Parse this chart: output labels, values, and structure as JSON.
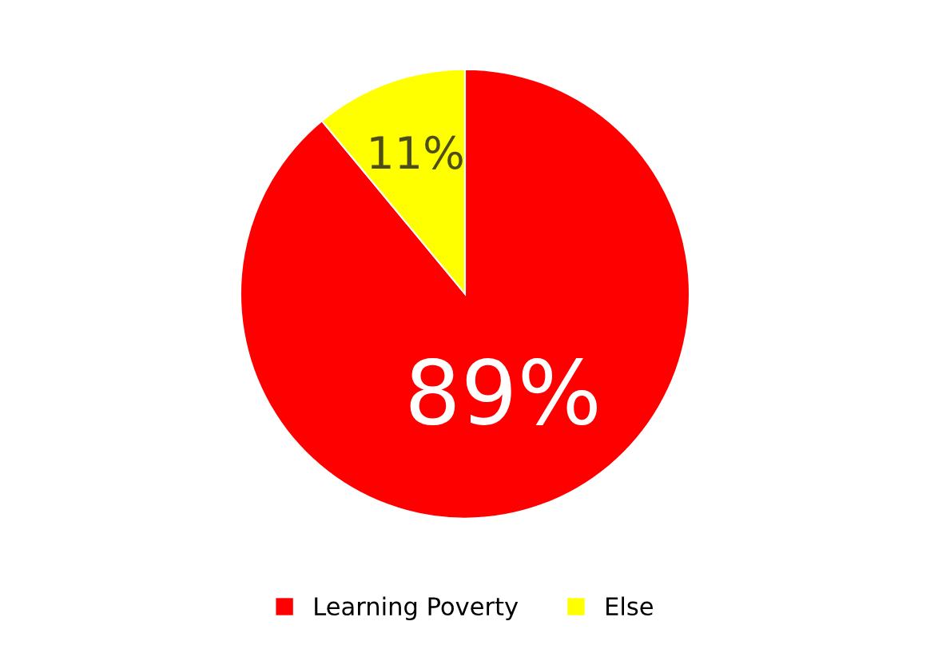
{
  "chart_data": {
    "type": "pie",
    "categories": [
      "Learning Poverty",
      "Else"
    ],
    "values": [
      89,
      11
    ],
    "colors": [
      "#ff0000",
      "#ffff00"
    ],
    "value_labels": [
      "89%",
      "11%"
    ],
    "legend": "bottom"
  }
}
